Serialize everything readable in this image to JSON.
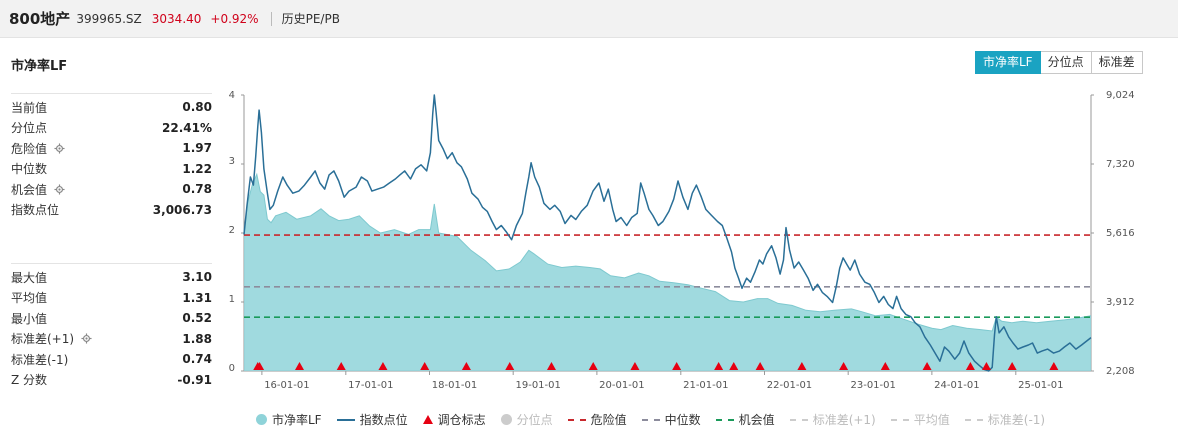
{
  "header": {
    "name": "800地产",
    "code": "399965.SZ",
    "price": "3034.40",
    "change": "+0.92%",
    "tab": "历史PE/PB"
  },
  "chart_title": "市净率LF",
  "buttons": [
    {
      "label": "市净率LF",
      "active": true
    },
    {
      "label": "分位点",
      "active": false
    },
    {
      "label": "标准差",
      "active": false
    }
  ],
  "stats_top": [
    {
      "label": "当前值",
      "value": "0.80",
      "gear": false
    },
    {
      "label": "分位点",
      "value": "22.41%",
      "gear": false
    },
    {
      "label": "危险值",
      "value": "1.97",
      "gear": true
    },
    {
      "label": "中位数",
      "value": "1.22",
      "gear": false
    },
    {
      "label": "机会值",
      "value": "0.78",
      "gear": true
    },
    {
      "label": "指数点位",
      "value": "3,006.73",
      "gear": false
    }
  ],
  "stats_bottom": [
    {
      "label": "最大值",
      "value": "3.10",
      "gear": false
    },
    {
      "label": "平均值",
      "value": "1.31",
      "gear": false
    },
    {
      "label": "最小值",
      "value": "0.52",
      "gear": false
    },
    {
      "label": "标准差(+1)",
      "value": "1.88",
      "gear": true
    },
    {
      "label": "标准差(-1)",
      "value": "0.74",
      "gear": false
    },
    {
      "label": "Z 分数",
      "value": "-0.91",
      "gear": false
    }
  ],
  "legend": [
    {
      "label": "市净率LF",
      "kind": "dot",
      "color": "#8fd3d9",
      "muted": false
    },
    {
      "label": "指数点位",
      "kind": "line",
      "color": "#2a6f97",
      "muted": false
    },
    {
      "label": "调仓标志",
      "kind": "triangle",
      "color": "#e60012",
      "muted": false
    },
    {
      "label": "分位点",
      "kind": "dot",
      "color": "#cccccc",
      "muted": true
    },
    {
      "label": "危险值",
      "kind": "dash",
      "color": "#c8282d",
      "muted": false
    },
    {
      "label": "中位数",
      "kind": "dash",
      "color": "#8c8c9c",
      "muted": false
    },
    {
      "label": "机会值",
      "kind": "dash",
      "color": "#1a9a5a",
      "muted": false
    },
    {
      "label": "标准差(+1)",
      "kind": "dash",
      "color": "#cccccc",
      "muted": true
    },
    {
      "label": "平均值",
      "kind": "dash",
      "color": "#cccccc",
      "muted": true
    },
    {
      "label": "标准差(-1)",
      "kind": "dash",
      "color": "#cccccc",
      "muted": true
    }
  ],
  "chart_data": {
    "type": "area",
    "x_tick_labels": [
      "16-01-01",
      "17-01-01",
      "18-01-01",
      "19-01-01",
      "20-01-01",
      "21-01-01",
      "22-01-01",
      "23-01-01",
      "24-01-01",
      "25-01-01"
    ],
    "x_range": [
      "2015-10-15",
      "2025-11-25"
    ],
    "ylim_left": [
      0,
      4
    ],
    "y_ticks_left": [
      "0",
      "1",
      "2",
      "3",
      "4"
    ],
    "ylim_right": [
      2208,
      9024
    ],
    "y_ticks_right": [
      "2,208",
      "3,912",
      "5,616",
      "7,320",
      "9,024"
    ],
    "colors": {
      "pb_fill": "#8fd3d9",
      "pb_line": "#7ec9cf",
      "index_line": "#2a6f97",
      "danger": "#c8282d",
      "median": "#8c8c9c",
      "opportunity": "#1a9a5a",
      "marker": "#e60012"
    },
    "reference_lines": {
      "danger": 1.97,
      "median": 1.22,
      "opportunity": 0.78
    },
    "pb_series": [
      [
        "2015-10-15",
        2.02
      ],
      [
        "2015-11-01",
        2.45
      ],
      [
        "2015-11-20",
        2.7
      ],
      [
        "2015-12-10",
        2.85
      ],
      [
        "2015-12-25",
        2.6
      ],
      [
        "2016-01-10",
        2.55
      ],
      [
        "2016-01-25",
        2.2
      ],
      [
        "2016-02-10",
        2.15
      ],
      [
        "2016-03-01",
        2.25
      ],
      [
        "2016-04-15",
        2.3
      ],
      [
        "2016-06-01",
        2.2
      ],
      [
        "2016-08-01",
        2.25
      ],
      [
        "2016-09-15",
        2.35
      ],
      [
        "2016-10-20",
        2.25
      ],
      [
        "2016-12-01",
        2.18
      ],
      [
        "2017-01-15",
        2.2
      ],
      [
        "2017-03-01",
        2.25
      ],
      [
        "2017-04-15",
        2.1
      ],
      [
        "2017-06-01",
        2.0
      ],
      [
        "2017-08-01",
        2.05
      ],
      [
        "2017-10-01",
        1.98
      ],
      [
        "2017-11-15",
        2.05
      ],
      [
        "2018-01-05",
        2.05
      ],
      [
        "2018-01-22",
        2.42
      ],
      [
        "2018-02-10",
        2.0
      ],
      [
        "2018-03-15",
        1.98
      ],
      [
        "2018-05-01",
        1.95
      ],
      [
        "2018-07-01",
        1.75
      ],
      [
        "2018-09-01",
        1.6
      ],
      [
        "2018-10-20",
        1.45
      ],
      [
        "2018-12-15",
        1.48
      ],
      [
        "2019-02-01",
        1.58
      ],
      [
        "2019-03-10",
        1.75
      ],
      [
        "2019-04-01",
        1.7
      ],
      [
        "2019-06-01",
        1.55
      ],
      [
        "2019-08-01",
        1.5
      ],
      [
        "2019-10-01",
        1.52
      ],
      [
        "2019-12-01",
        1.5
      ],
      [
        "2020-01-15",
        1.48
      ],
      [
        "2020-03-01",
        1.38
      ],
      [
        "2020-05-01",
        1.35
      ],
      [
        "2020-07-01",
        1.42
      ],
      [
        "2020-08-15",
        1.38
      ],
      [
        "2020-10-01",
        1.3
      ],
      [
        "2020-12-01",
        1.28
      ],
      [
        "2021-02-01",
        1.25
      ],
      [
        "2021-04-01",
        1.2
      ],
      [
        "2021-06-01",
        1.15
      ],
      [
        "2021-08-01",
        1.02
      ],
      [
        "2021-10-01",
        1.0
      ],
      [
        "2021-12-01",
        1.05
      ],
      [
        "2022-01-15",
        1.05
      ],
      [
        "2022-03-01",
        0.98
      ],
      [
        "2022-05-01",
        0.95
      ],
      [
        "2022-07-01",
        0.88
      ],
      [
        "2022-09-01",
        0.86
      ],
      [
        "2022-11-01",
        0.88
      ],
      [
        "2023-01-15",
        0.9
      ],
      [
        "2023-03-01",
        0.86
      ],
      [
        "2023-05-01",
        0.8
      ],
      [
        "2023-07-01",
        0.82
      ],
      [
        "2023-09-01",
        0.75
      ],
      [
        "2023-11-01",
        0.68
      ],
      [
        "2024-01-01",
        0.62
      ],
      [
        "2024-02-10",
        0.6
      ],
      [
        "2024-04-01",
        0.66
      ],
      [
        "2024-06-01",
        0.62
      ],
      [
        "2024-08-01",
        0.6
      ],
      [
        "2024-09-20",
        0.58
      ],
      [
        "2024-10-08",
        0.78
      ],
      [
        "2024-11-01",
        0.72
      ],
      [
        "2024-12-15",
        0.7
      ],
      [
        "2025-02-01",
        0.72
      ],
      [
        "2025-04-01",
        0.7
      ],
      [
        "2025-06-01",
        0.72
      ],
      [
        "2025-08-01",
        0.74
      ],
      [
        "2025-09-15",
        0.76
      ],
      [
        "2025-11-25",
        0.8
      ]
    ],
    "index_series": [
      [
        "2015-10-15",
        5580
      ],
      [
        "2015-10-28",
        6300
      ],
      [
        "2015-11-12",
        7000
      ],
      [
        "2015-11-25",
        6800
      ],
      [
        "2015-12-05",
        7500
      ],
      [
        "2015-12-14",
        8250
      ],
      [
        "2015-12-20",
        8650
      ],
      [
        "2015-12-30",
        8100
      ],
      [
        "2016-01-10",
        7200
      ],
      [
        "2016-01-25",
        6600
      ],
      [
        "2016-02-05",
        6200
      ],
      [
        "2016-02-20",
        6300
      ],
      [
        "2016-03-10",
        6650
      ],
      [
        "2016-04-01",
        7000
      ],
      [
        "2016-04-20",
        6800
      ],
      [
        "2016-05-15",
        6600
      ],
      [
        "2016-06-10",
        6650
      ],
      [
        "2016-07-05",
        6800
      ],
      [
        "2016-08-01",
        7000
      ],
      [
        "2016-08-20",
        7150
      ],
      [
        "2016-09-10",
        6850
      ],
      [
        "2016-10-01",
        6700
      ],
      [
        "2016-10-20",
        7050
      ],
      [
        "2016-11-10",
        7150
      ],
      [
        "2016-12-01",
        6900
      ],
      [
        "2016-12-25",
        6500
      ],
      [
        "2017-01-15",
        6650
      ],
      [
        "2017-02-15",
        6750
      ],
      [
        "2017-03-10",
        7000
      ],
      [
        "2017-04-05",
        6900
      ],
      [
        "2017-04-25",
        6650
      ],
      [
        "2017-05-20",
        6700
      ],
      [
        "2017-06-15",
        6750
      ],
      [
        "2017-07-10",
        6850
      ],
      [
        "2017-08-05",
        6950
      ],
      [
        "2017-08-25",
        7050
      ],
      [
        "2017-09-15",
        7150
      ],
      [
        "2017-10-10",
        6950
      ],
      [
        "2017-11-01",
        7200
      ],
      [
        "2017-11-25",
        7300
      ],
      [
        "2017-12-20",
        7150
      ],
      [
        "2018-01-05",
        7600
      ],
      [
        "2018-01-15",
        8550
      ],
      [
        "2018-01-22",
        9024
      ],
      [
        "2018-01-30",
        8600
      ],
      [
        "2018-02-10",
        7900
      ],
      [
        "2018-03-01",
        7700
      ],
      [
        "2018-03-20",
        7450
      ],
      [
        "2018-04-10",
        7600
      ],
      [
        "2018-05-01",
        7350
      ],
      [
        "2018-05-20",
        7250
      ],
      [
        "2018-06-15",
        6950
      ],
      [
        "2018-07-05",
        6600
      ],
      [
        "2018-08-01",
        6450
      ],
      [
        "2018-08-20",
        6250
      ],
      [
        "2018-09-10",
        6150
      ],
      [
        "2018-10-01",
        5900
      ],
      [
        "2018-10-20",
        5700
      ],
      [
        "2018-11-10",
        5800
      ],
      [
        "2018-12-01",
        5650
      ],
      [
        "2018-12-25",
        5450
      ],
      [
        "2019-01-15",
        5800
      ],
      [
        "2019-02-10",
        6100
      ],
      [
        "2019-02-25",
        6600
      ],
      [
        "2019-03-10",
        7000
      ],
      [
        "2019-03-20",
        7350
      ],
      [
        "2019-04-05",
        7000
      ],
      [
        "2019-04-25",
        6750
      ],
      [
        "2019-05-15",
        6350
      ],
      [
        "2019-06-10",
        6200
      ],
      [
        "2019-07-01",
        6300
      ],
      [
        "2019-07-25",
        6150
      ],
      [
        "2019-08-15",
        5850
      ],
      [
        "2019-09-10",
        6050
      ],
      [
        "2019-10-01",
        5950
      ],
      [
        "2019-10-25",
        6150
      ],
      [
        "2019-11-20",
        6300
      ],
      [
        "2019-12-15",
        6650
      ],
      [
        "2020-01-10",
        6850
      ],
      [
        "2020-02-01",
        6400
      ],
      [
        "2020-02-20",
        6700
      ],
      [
        "2020-03-10",
        6200
      ],
      [
        "2020-03-25",
        5900
      ],
      [
        "2020-04-15",
        6000
      ],
      [
        "2020-05-10",
        5800
      ],
      [
        "2020-06-01",
        6000
      ],
      [
        "2020-06-25",
        6100
      ],
      [
        "2020-07-10",
        6850
      ],
      [
        "2020-07-25",
        6600
      ],
      [
        "2020-08-15",
        6200
      ],
      [
        "2020-09-01",
        6050
      ],
      [
        "2020-09-25",
        5800
      ],
      [
        "2020-10-15",
        5900
      ],
      [
        "2020-11-10",
        6150
      ],
      [
        "2020-12-01",
        6450
      ],
      [
        "2020-12-20",
        6900
      ],
      [
        "2021-01-10",
        6500
      ],
      [
        "2021-02-01",
        6200
      ],
      [
        "2021-02-20",
        6600
      ],
      [
        "2021-03-10",
        6800
      ],
      [
        "2021-04-01",
        6500
      ],
      [
        "2021-04-20",
        6200
      ],
      [
        "2021-05-15",
        6050
      ],
      [
        "2021-06-10",
        5900
      ],
      [
        "2021-07-01",
        5800
      ],
      [
        "2021-07-20",
        5500
      ],
      [
        "2021-08-10",
        5150
      ],
      [
        "2021-08-25",
        4750
      ],
      [
        "2021-09-10",
        4500
      ],
      [
        "2021-09-25",
        4250
      ],
      [
        "2021-10-15",
        4500
      ],
      [
        "2021-11-01",
        4400
      ],
      [
        "2021-11-20",
        4650
      ],
      [
        "2021-12-10",
        4950
      ],
      [
        "2021-12-25",
        4850
      ],
      [
        "2022-01-10",
        5100
      ],
      [
        "2022-02-01",
        5300
      ],
      [
        "2022-02-20",
        5000
      ],
      [
        "2022-03-10",
        4600
      ],
      [
        "2022-03-25",
        4950
      ],
      [
        "2022-04-05",
        5750
      ],
      [
        "2022-04-20",
        5200
      ],
      [
        "2022-05-10",
        4750
      ],
      [
        "2022-05-30",
        4900
      ],
      [
        "2022-06-20",
        4700
      ],
      [
        "2022-07-10",
        4500
      ],
      [
        "2022-08-01",
        4200
      ],
      [
        "2022-08-20",
        4350
      ],
      [
        "2022-09-10",
        4150
      ],
      [
        "2022-10-01",
        4050
      ],
      [
        "2022-10-25",
        3900
      ],
      [
        "2022-11-10",
        4300
      ],
      [
        "2022-11-25",
        4750
      ],
      [
        "2022-12-10",
        5000
      ],
      [
        "2022-12-25",
        4850
      ],
      [
        "2023-01-10",
        4700
      ],
      [
        "2023-01-30",
        4950
      ],
      [
        "2023-02-20",
        4600
      ],
      [
        "2023-03-15",
        4400
      ],
      [
        "2023-04-05",
        4350
      ],
      [
        "2023-04-25",
        4150
      ],
      [
        "2023-05-15",
        3900
      ],
      [
        "2023-06-05",
        4050
      ],
      [
        "2023-06-25",
        3850
      ],
      [
        "2023-07-15",
        3750
      ],
      [
        "2023-07-31",
        4050
      ],
      [
        "2023-08-20",
        3750
      ],
      [
        "2023-09-10",
        3600
      ],
      [
        "2023-10-01",
        3550
      ],
      [
        "2023-10-20",
        3400
      ],
      [
        "2023-11-10",
        3300
      ],
      [
        "2023-12-01",
        3050
      ],
      [
        "2023-12-25",
        2850
      ],
      [
        "2024-01-15",
        2650
      ],
      [
        "2024-02-05",
        2450
      ],
      [
        "2024-02-25",
        2800
      ],
      [
        "2024-03-15",
        2700
      ],
      [
        "2024-04-10",
        2500
      ],
      [
        "2024-05-01",
        2650
      ],
      [
        "2024-05-20",
        2950
      ],
      [
        "2024-06-10",
        2650
      ],
      [
        "2024-07-05",
        2450
      ],
      [
        "2024-07-25",
        2350
      ],
      [
        "2024-08-15",
        2250
      ],
      [
        "2024-09-05",
        2208
      ],
      [
        "2024-09-20",
        2300
      ],
      [
        "2024-09-30",
        3100
      ],
      [
        "2024-10-08",
        3550
      ],
      [
        "2024-10-20",
        3150
      ],
      [
        "2024-11-10",
        3300
      ],
      [
        "2024-12-01",
        3050
      ],
      [
        "2024-12-20",
        2900
      ],
      [
        "2025-01-10",
        2750
      ],
      [
        "2025-02-01",
        2800
      ],
      [
        "2025-02-25",
        2850
      ],
      [
        "2025-03-15",
        2900
      ],
      [
        "2025-04-05",
        2650
      ],
      [
        "2025-04-25",
        2700
      ],
      [
        "2025-05-20",
        2750
      ],
      [
        "2025-06-15",
        2650
      ],
      [
        "2025-07-10",
        2700
      ],
      [
        "2025-08-01",
        2800
      ],
      [
        "2025-08-25",
        2900
      ],
      [
        "2025-09-20",
        2750
      ],
      [
        "2025-10-15",
        2850
      ],
      [
        "2025-11-25",
        3034
      ]
    ],
    "rebalance_markers": [
      "2015-12-14",
      "2015-12-22",
      "2016-06-13",
      "2016-12-12",
      "2017-06-12",
      "2017-12-11",
      "2018-06-11",
      "2018-12-17",
      "2019-06-17",
      "2019-12-16",
      "2020-06-15",
      "2020-12-14",
      "2021-06-15",
      "2021-08-20",
      "2021-12-13",
      "2022-06-13",
      "2022-12-12",
      "2023-06-12",
      "2023-12-11",
      "2024-06-17",
      "2024-08-26",
      "2024-12-16",
      "2025-06-16"
    ]
  }
}
